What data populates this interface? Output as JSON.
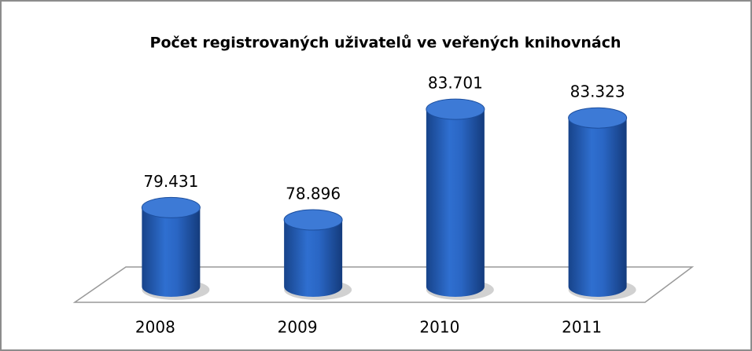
{
  "chart_data": {
    "type": "cylinder",
    "title": "Počet registrovaných uživatelů ve veřených knihovnách",
    "categories": [
      "2008",
      "2009",
      "2010",
      "2011"
    ],
    "values": [
      79431,
      78896,
      83701,
      83323
    ],
    "value_labels": [
      "79.431",
      "78.896",
      "83.701",
      "83.323"
    ],
    "color": "#1f5bb8",
    "ylim": [
      76000,
      85000
    ],
    "grid": false
  }
}
